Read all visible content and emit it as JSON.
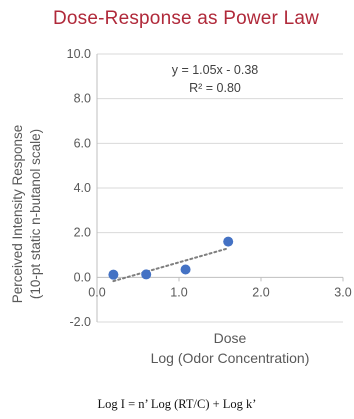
{
  "chart_data": {
    "type": "scatter",
    "title": "Dose-Response as Power Law",
    "xlabel": [
      "Dose",
      "Log (Odor Concentration)"
    ],
    "ylabel": [
      "Perceived Intensity Response",
      "(10-pt static n-butanol scale)"
    ],
    "xlim": [
      0.0,
      3.0
    ],
    "ylim": [
      -2.0,
      10.0
    ],
    "x_ticks": [
      0.0,
      1.0,
      2.0,
      3.0
    ],
    "y_ticks": [
      -2.0,
      0.0,
      2.0,
      4.0,
      6.0,
      8.0,
      10.0
    ],
    "x_tick_labels": [
      "0.0",
      "1.0",
      "2.0",
      "3.0"
    ],
    "y_tick_labels": [
      "-2.0",
      "0.0",
      "2.0",
      "4.0",
      "6.0",
      "8.0",
      "10.0"
    ],
    "grid": "horizontal",
    "legend": "none",
    "series": [
      {
        "points": [
          {
            "x": 0.2,
            "y": 0.12
          },
          {
            "x": 0.6,
            "y": 0.13
          },
          {
            "x": 1.08,
            "y": 0.35
          },
          {
            "x": 1.6,
            "y": 1.6
          }
        ],
        "color": "#4472c4",
        "marker": "circle"
      }
    ],
    "trendline": {
      "kind": "linear",
      "slope": 1.05,
      "intercept": -0.38,
      "x_range": [
        0.2,
        1.6
      ],
      "color": "#7f7f7f",
      "style": "dotted"
    },
    "annotations": [
      "y = 1.05x - 0.38",
      "R² = 0.80"
    ]
  },
  "formula": "Log I = n’ Log (RT/C) + Log k’",
  "colors": {
    "title": "#b0293a",
    "grid": "#d9d9d9",
    "axis_text": "#595959",
    "points": "#4472c4",
    "trendline": "#7f7f7f"
  }
}
